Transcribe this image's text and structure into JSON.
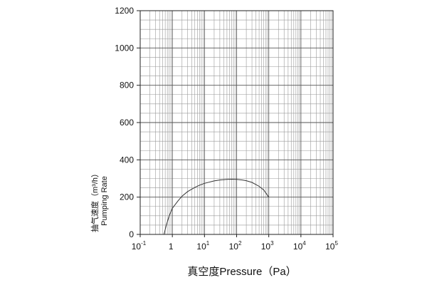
{
  "chart_data": {
    "type": "line",
    "title": "",
    "xlabel": "真空度Pressure（Pa）",
    "ylabel_cn": "抽气速度（m³/h）",
    "ylabel_en": "Pumping Rate",
    "xscale": "log",
    "xlim": [
      0.1,
      100000
    ],
    "ylim": [
      0,
      1200
    ],
    "grid": true,
    "x_ticks": [
      {
        "base": "10",
        "exp": "-1"
      },
      {
        "base": "1",
        "exp": ""
      },
      {
        "base": "10",
        "exp": "1"
      },
      {
        "base": "10",
        "exp": "2"
      },
      {
        "base": "10",
        "exp": "3"
      },
      {
        "base": "10",
        "exp": "4"
      },
      {
        "base": "10",
        "exp": "5"
      }
    ],
    "y_ticks": [
      0,
      200,
      400,
      600,
      800,
      1000,
      1200
    ],
    "series": [
      {
        "x": [
          0.55,
          0.65,
          0.8,
          1,
          1.5,
          2,
          3,
          5,
          7,
          10,
          20,
          30,
          50,
          70,
          100,
          150,
          200,
          300,
          500,
          700,
          1000
        ],
        "y": [
          0,
          50,
          100,
          140,
          180,
          205,
          230,
          252,
          264,
          274,
          287,
          292,
          295,
          296,
          295,
          292,
          288,
          279,
          258,
          238,
          200
        ]
      }
    ]
  }
}
